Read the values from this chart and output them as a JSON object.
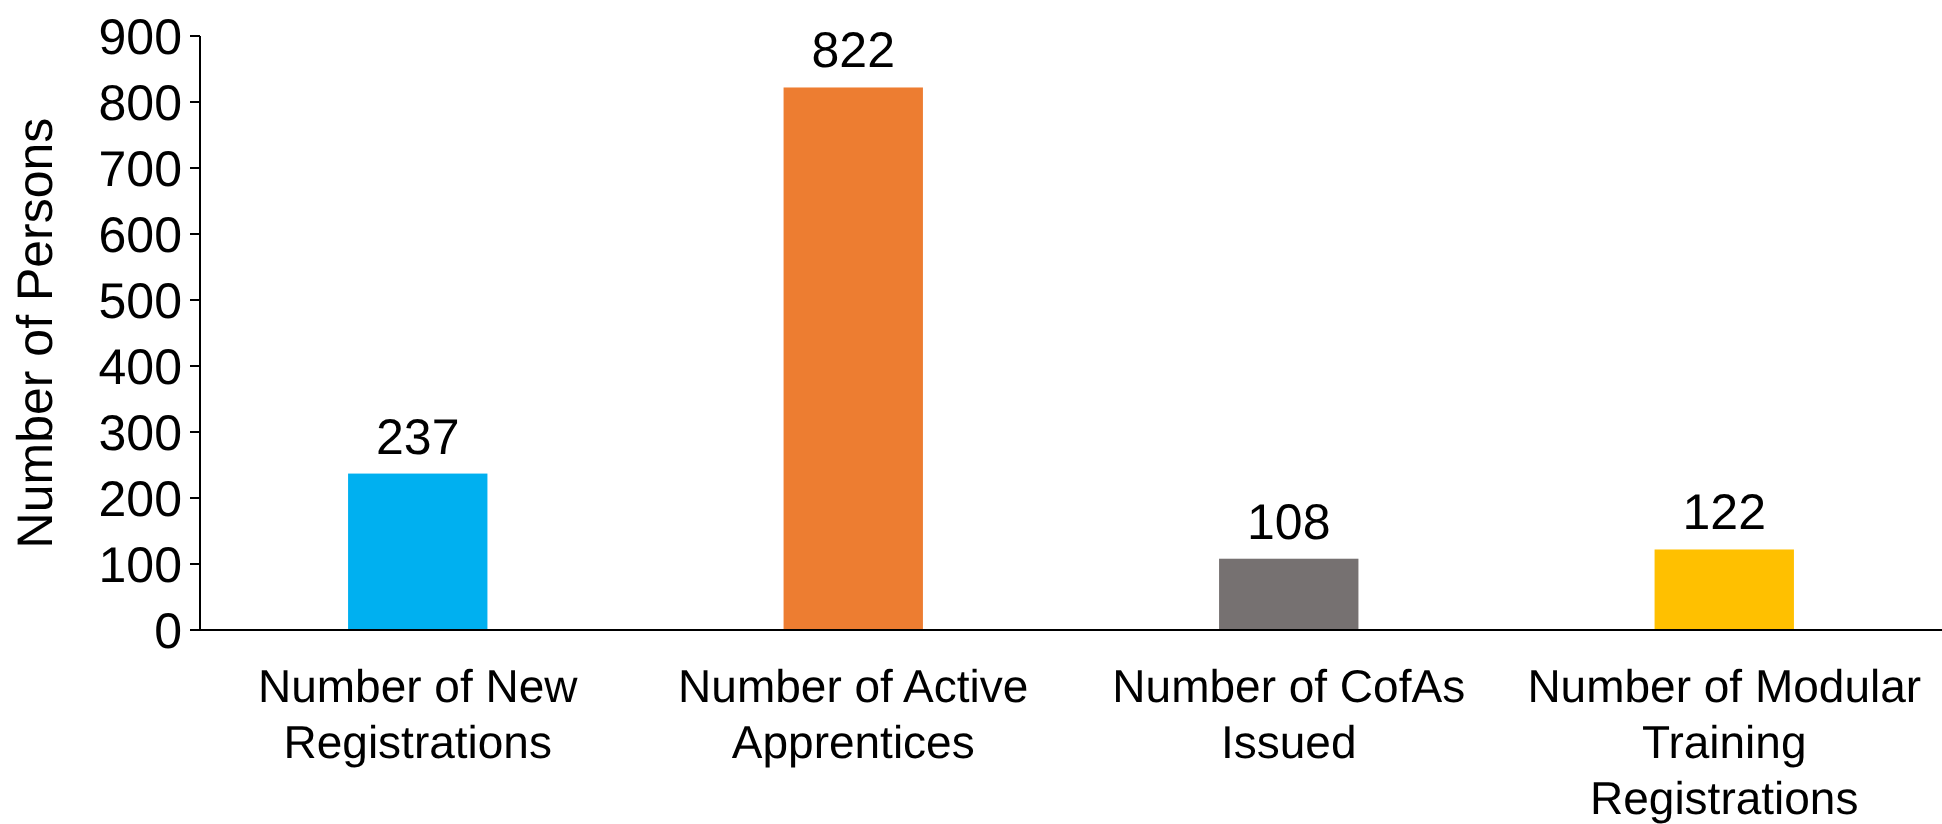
{
  "chart_data": {
    "type": "bar",
    "ylabel": "Number of Persons",
    "categories": [
      "Number of New Registrations",
      "Number of Active Apprentices",
      "Number of CofAs Issued",
      "Number of Modular Training Registrations"
    ],
    "values": [
      237,
      822,
      108,
      122
    ],
    "colors": [
      "#00b0f0",
      "#ed7d31",
      "#767171",
      "#ffc000"
    ],
    "ylim": [
      0,
      900
    ],
    "yticks": [
      0,
      100,
      200,
      300,
      400,
      500,
      600,
      700,
      800,
      900
    ],
    "data_labels": true
  }
}
